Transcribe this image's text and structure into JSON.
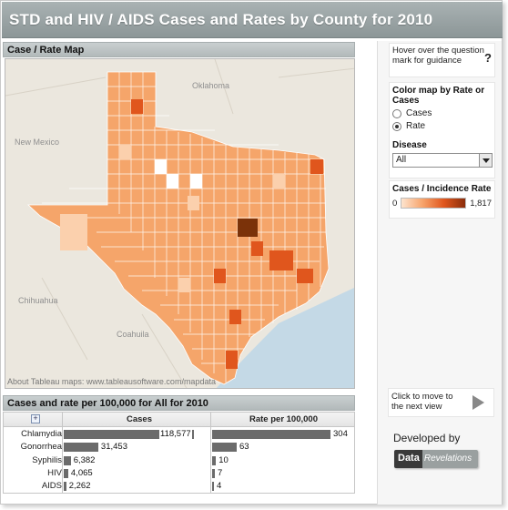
{
  "title": "STD and HIV / AIDS Cases and Rates by County for 2010",
  "map": {
    "header": "Case / Rate Map",
    "labels": {
      "oklahoma": "Oklahoma",
      "new_mexico": "New Mexico",
      "chihuahua": "Chihuahua",
      "coahuila": "Coahuila"
    },
    "attribution": "About Tableau maps: www.tableausoftware.com/mapdata"
  },
  "sidebar": {
    "guidance": "Hover over the question mark for guidance",
    "guidance_icon": "?",
    "color_by_title": "Color map by Rate or Cases",
    "options": [
      "Cases",
      "Rate"
    ],
    "selected_option": "Rate",
    "disease_title": "Disease",
    "disease_value": "All",
    "legend_title": "Cases / Incidence Rate",
    "legend_min": "0",
    "legend_max": "1,817",
    "next_view": "Click to move to the next view",
    "developed_by": "Developed by",
    "logo_part1": "Data",
    "logo_part2": "Revelations"
  },
  "table": {
    "header": "Cases and rate per 100,000 for All for 2010",
    "expand_icon": "+",
    "col_cases": "Cases",
    "col_rate": "Rate per 100,000",
    "rows": [
      {
        "name": "Chlamydia",
        "cases": 118577,
        "cases_label": "118,577",
        "rate": 304,
        "rate_label": "304"
      },
      {
        "name": "Gonorrhea",
        "cases": 31453,
        "cases_label": "31,453",
        "rate": 63,
        "rate_label": "63"
      },
      {
        "name": "Syphilis",
        "cases": 6382,
        "cases_label": "6,382",
        "rate": 10,
        "rate_label": "10"
      },
      {
        "name": "HIV",
        "cases": 4065,
        "cases_label": "4,065",
        "rate": 7,
        "rate_label": "7"
      },
      {
        "name": "AIDS",
        "cases": 2262,
        "cases_label": "2,262",
        "rate": 4,
        "rate_label": "4"
      }
    ]
  },
  "colors": {
    "title_bar": "#969fa0",
    "bar": "#6b6b6b",
    "map_low": "#fde4cf",
    "map_mid": "#f7a36a",
    "map_high": "#8a2d0b"
  }
}
